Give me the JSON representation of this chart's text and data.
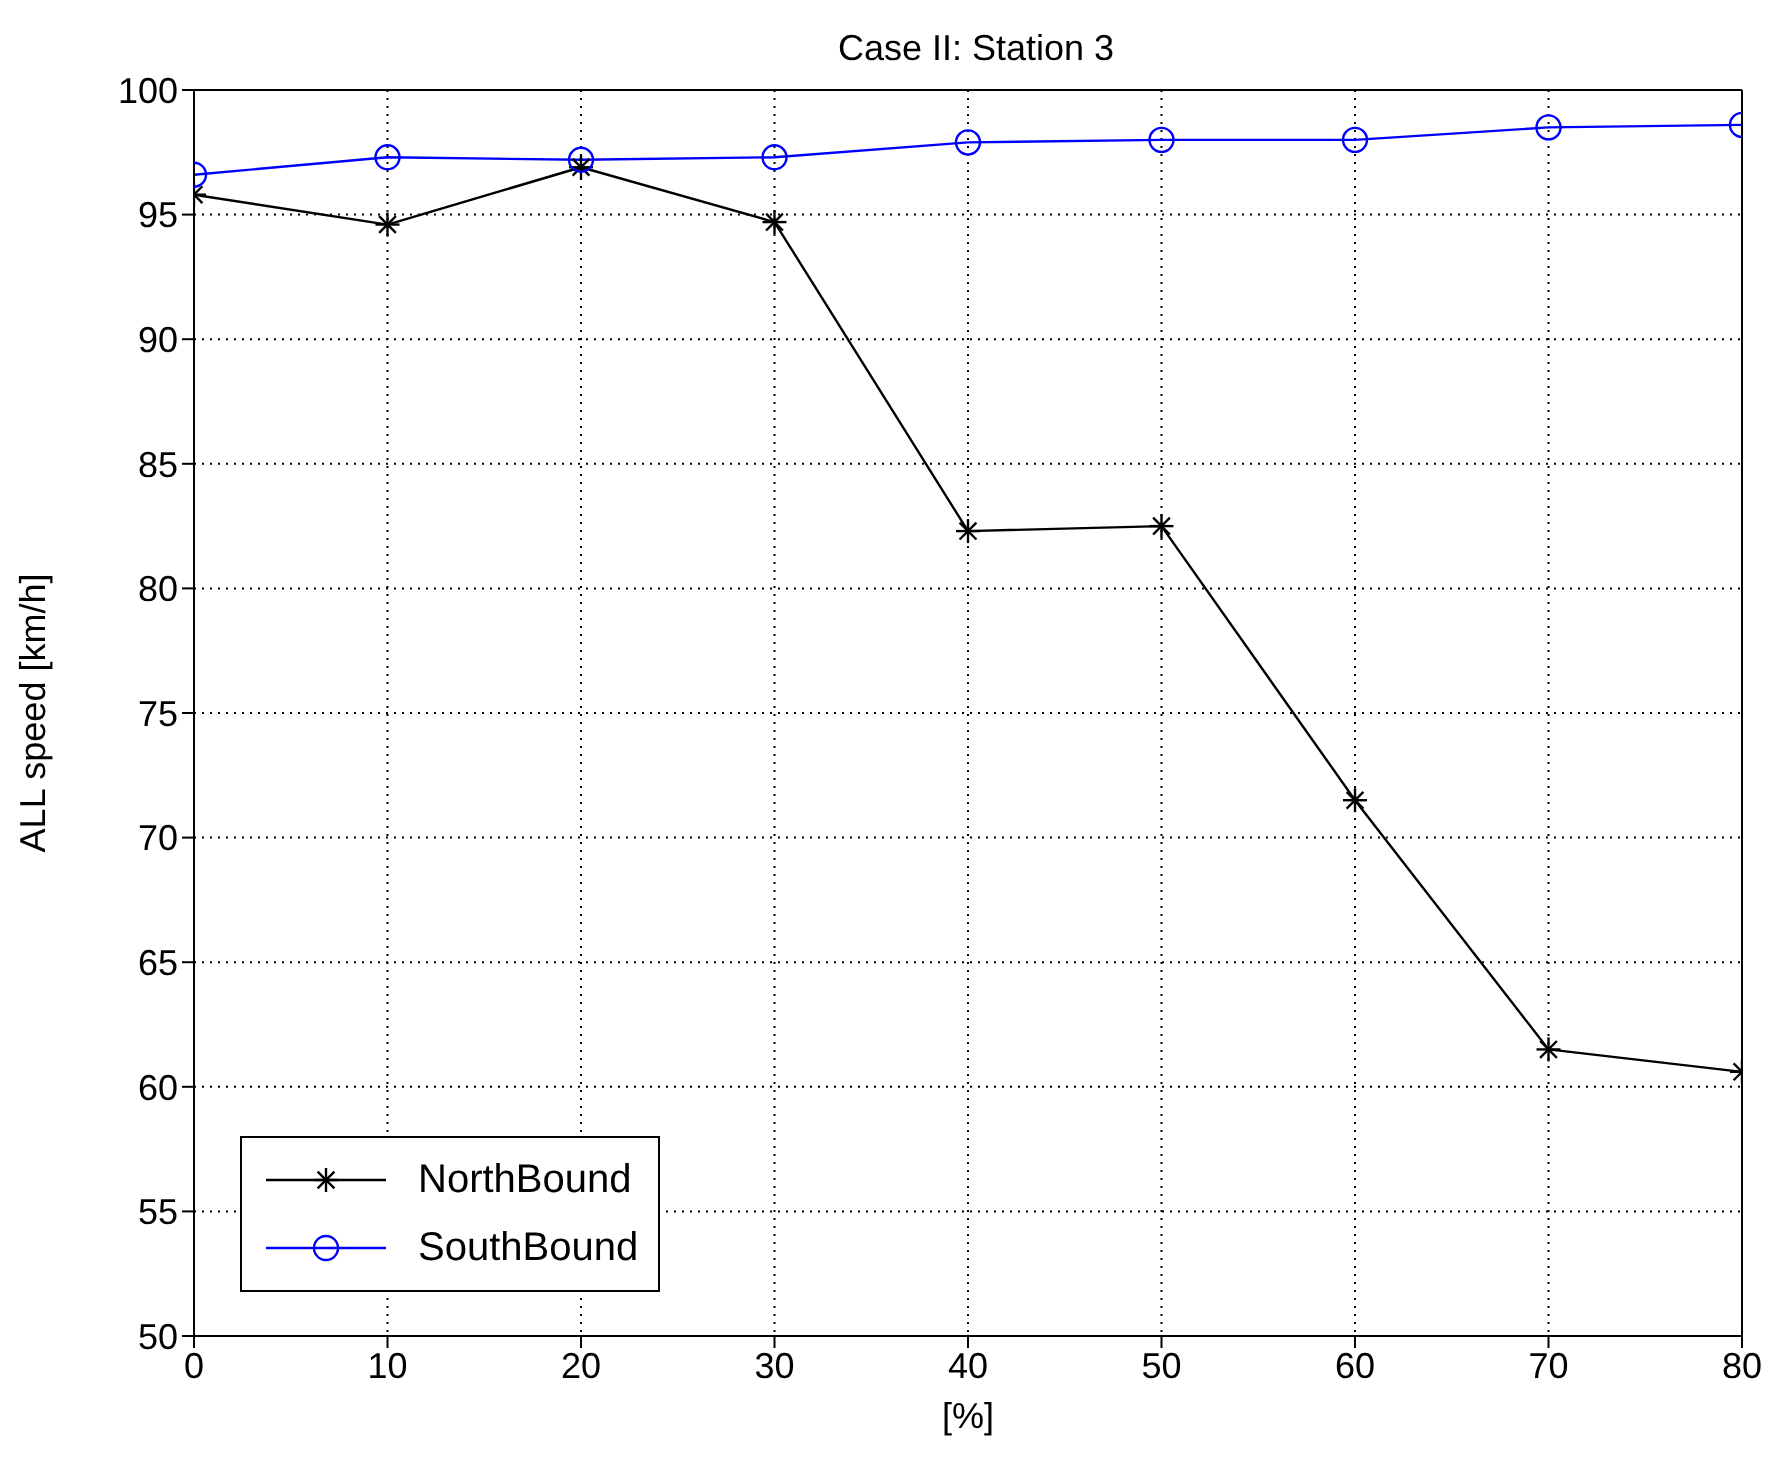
{
  "chart_data": {
    "type": "line",
    "title": "Case II: Station 3",
    "xlabel": "[%]",
    "ylabel": "ALL speed [km/h]",
    "x": [
      0,
      10,
      20,
      30,
      40,
      50,
      60,
      70,
      80
    ],
    "series": [
      {
        "name": "NorthBound",
        "color": "#000000",
        "marker": "cross",
        "values": [
          95.8,
          94.6,
          96.9,
          94.7,
          82.3,
          82.5,
          71.5,
          61.5,
          60.6
        ]
      },
      {
        "name": "SouthBound",
        "color": "#0000ff",
        "marker": "circle",
        "values": [
          96.6,
          97.3,
          97.2,
          97.3,
          97.9,
          98.0,
          98.0,
          98.5,
          98.6
        ]
      }
    ],
    "xlim": [
      0,
      80
    ],
    "xticks": [
      0,
      10,
      20,
      30,
      40,
      50,
      60,
      70,
      80
    ],
    "ylim": [
      50,
      100
    ],
    "yticks": [
      50,
      55,
      60,
      65,
      70,
      75,
      80,
      85,
      90,
      95,
      100
    ],
    "grid": true,
    "legend": "bottom left",
    "line_style": "solid"
  }
}
